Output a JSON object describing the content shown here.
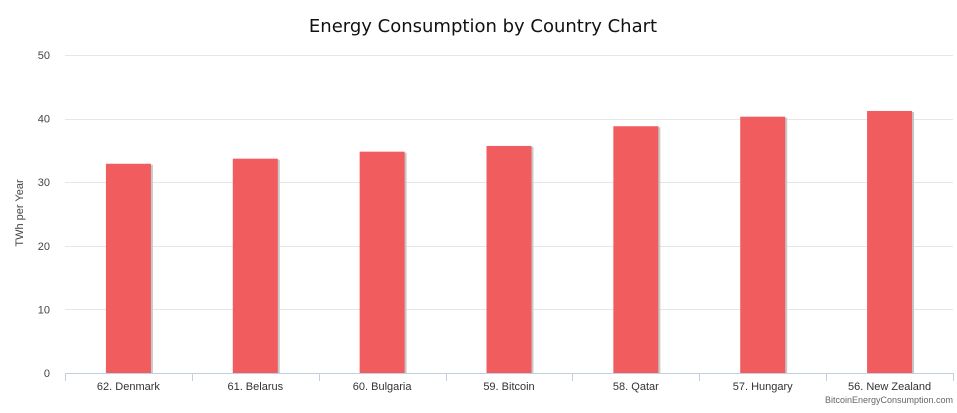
{
  "chart_data": {
    "type": "bar",
    "title": "Energy Consumption by Country Chart",
    "xlabel": "",
    "ylabel": "TWh per Year",
    "categories": [
      "62. Denmark",
      "61. Belarus",
      "60. Bulgaria",
      "59. Bitcoin",
      "58. Qatar",
      "57. Hungary",
      "56. New Zealand"
    ],
    "values": [
      32.9,
      33.7,
      34.8,
      35.7,
      38.8,
      40.3,
      41.2
    ],
    "ylim": [
      0,
      50
    ],
    "yticks": [
      0,
      10,
      20,
      30,
      40,
      50
    ],
    "grid": true,
    "legend": "none",
    "bar_color": "#f15c5f",
    "credit": "BitcoinEnergyConsumption.com"
  }
}
